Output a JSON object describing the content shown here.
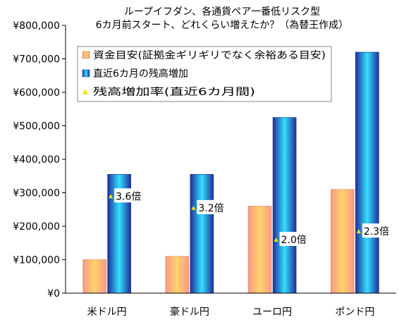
{
  "chart_data": {
    "type": "bar",
    "title": [
      "ループイフダン、各通貨ペア一番低リスク型",
      "6カ月前スタート、どれくらい増えたか？（為替王作成）"
    ],
    "categories": [
      "米ドル円",
      "豪ドル円",
      "ユーロ円",
      "ポンド円"
    ],
    "ylim": [
      0,
      800000
    ],
    "yticks": [
      0,
      100000,
      200000,
      300000,
      400000,
      500000,
      600000,
      700000,
      800000
    ],
    "ytick_labels": [
      "¥0",
      "¥100,000",
      "¥200,000",
      "¥300,000",
      "¥400,000",
      "¥500,000",
      "¥600,000",
      "¥700,000",
      "¥800,000"
    ],
    "grid": false,
    "legend_position": "top",
    "series": [
      {
        "name": "資金目安(証拠金ギリギリでなく余裕ある目安)",
        "values": [
          100000,
          110000,
          260000,
          310000
        ],
        "color": "#f4a77a"
      },
      {
        "name": "直近6カ月の残高増加",
        "values": [
          355000,
          355000,
          525000,
          720000
        ],
        "color": "#2a3fb0"
      }
    ],
    "ratio": {
      "name": "残高増加率(直近6カ月間)",
      "values": [
        290000,
        255000,
        160000,
        185000
      ],
      "labels": [
        "3.6倍",
        "3.2倍",
        "2.0倍",
        "2.3倍"
      ],
      "color": "#f2e600"
    }
  }
}
